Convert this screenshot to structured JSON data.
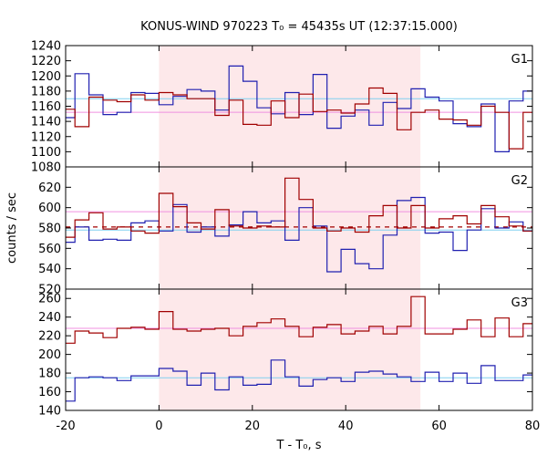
{
  "chart_data": {
    "type": "line",
    "title": "KONUS-WIND 970223 T₀ = 45435s UT (12:37:15.000)",
    "xlabel": "T - T₀, s",
    "ylabel": "counts / sec",
    "xlim": [
      -20,
      80
    ],
    "xticks": [
      -20,
      0,
      20,
      40,
      60,
      80
    ],
    "shaded_interval": [
      0,
      56
    ],
    "shade_color": "#fde8ea",
    "colors": {
      "red": "#a00000",
      "blue": "#2020b0",
      "pink": "#f090e0",
      "cyan": "#80d0f0"
    },
    "x_edges": [
      -20,
      -18,
      -15,
      -12,
      -9,
      -6,
      -3,
      0,
      3,
      6,
      9,
      12,
      15,
      18,
      21,
      24,
      27,
      30,
      33,
      36,
      39,
      42,
      45,
      48,
      51,
      54,
      57,
      60,
      63,
      66,
      69,
      72,
      75,
      78,
      80
    ],
    "panels": [
      {
        "label": "G1",
        "ylim": [
          1080,
          1240
        ],
        "yticks": [
          1080,
          1100,
          1120,
          1140,
          1160,
          1180,
          1200,
          1220,
          1240
        ],
        "red": [
          1156,
          1133,
          1172,
          1168,
          1166,
          1175,
          1168,
          1178,
          1175,
          1170,
          1170,
          1148,
          1168,
          1136,
          1135,
          1167,
          1145,
          1176,
          1153,
          1155,
          1151,
          1163,
          1184,
          1177,
          1129,
          1152,
          1155,
          1143,
          1142,
          1135,
          1160,
          1152,
          1104,
          1152
        ],
        "blue": [
          1145,
          1203,
          1175,
          1149,
          1152,
          1178,
          1177,
          1162,
          1173,
          1182,
          1180,
          1155,
          1213,
          1193,
          1158,
          1150,
          1178,
          1149,
          1202,
          1131,
          1147,
          1155,
          1135,
          1165,
          1157,
          1183,
          1172,
          1167,
          1137,
          1133,
          1163,
          1100,
          1167,
          1180
        ],
        "red_level": 1152,
        "blue_level": 1170
      },
      {
        "label": "G2",
        "ylim": [
          520,
          640
        ],
        "yticks": [
          520,
          540,
          560,
          580,
          600,
          620
        ],
        "red": [
          571,
          588,
          595,
          579,
          581,
          577,
          575,
          614,
          601,
          585,
          579,
          598,
          582,
          580,
          582,
          581,
          629,
          608,
          580,
          577,
          580,
          576,
          592,
          602,
          580,
          602,
          580,
          589,
          592,
          584,
          602,
          591,
          582,
          577
        ],
        "blue": [
          566,
          581,
          568,
          569,
          568,
          585,
          587,
          577,
          603,
          576,
          581,
          572,
          583,
          596,
          585,
          587,
          568,
          600,
          582,
          537,
          559,
          545,
          540,
          573,
          607,
          610,
          575,
          576,
          558,
          578,
          599,
          580,
          586,
          577
        ],
        "red_level": 596,
        "blue_level": 578,
        "dashed_level": 581
      },
      {
        "label": "G3",
        "ylim": [
          140,
          270
        ],
        "yticks": [
          140,
          160,
          180,
          200,
          220,
          240,
          260
        ],
        "red": [
          212,
          225,
          223,
          218,
          228,
          229,
          227,
          246,
          227,
          225,
          227,
          228,
          220,
          230,
          234,
          238,
          230,
          219,
          229,
          232,
          222,
          225,
          230,
          222,
          230,
          262,
          222,
          222,
          227,
          237,
          219,
          239,
          219,
          233
        ],
        "blue": [
          150,
          175,
          176,
          175,
          172,
          177,
          177,
          185,
          182,
          167,
          180,
          162,
          176,
          167,
          168,
          194,
          176,
          166,
          173,
          175,
          171,
          181,
          182,
          179,
          176,
          171,
          181,
          171,
          180,
          169,
          188,
          172,
          172,
          178
        ],
        "red_level": 228,
        "blue_level": 175
      }
    ]
  }
}
